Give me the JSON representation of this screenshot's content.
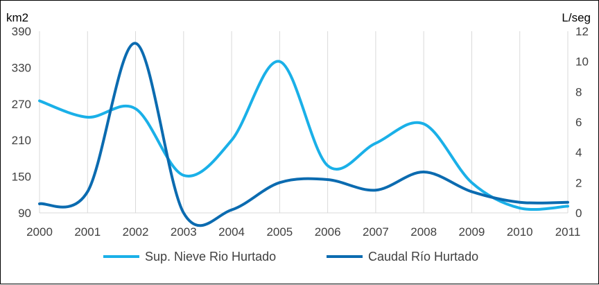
{
  "chart_data": {
    "type": "line",
    "left_unit": "km2",
    "right_unit": "L/seg",
    "x": [
      "2000",
      "2001",
      "2002",
      "2003",
      "2004",
      "2005",
      "2006",
      "2007",
      "2008",
      "2009",
      "2010",
      "2011"
    ],
    "y_left_ticks": [
      "390",
      "330",
      "270",
      "210",
      "150",
      "90"
    ],
    "y_right_ticks": [
      "12",
      "10",
      "8",
      "6",
      "4",
      "2",
      "0"
    ],
    "y_left_range": [
      90,
      390
    ],
    "y_right_range": [
      0,
      12
    ],
    "grid": "vertical",
    "legend_position": "bottom",
    "series": [
      {
        "name": "Sup. Nieve Rio Hurtado",
        "axis": "left",
        "color": "#1ab0e8",
        "values": [
          275,
          248,
          262,
          152,
          210,
          340,
          168,
          205,
          237,
          140,
          98,
          101
        ]
      },
      {
        "name": "Caudal Río Hurtado",
        "axis": "right",
        "color": "#0b6bb0",
        "values": [
          0.6,
          1.4,
          11.2,
          0.0,
          0.2,
          2.0,
          2.2,
          1.5,
          2.7,
          1.4,
          0.7,
          0.7
        ]
      }
    ]
  }
}
